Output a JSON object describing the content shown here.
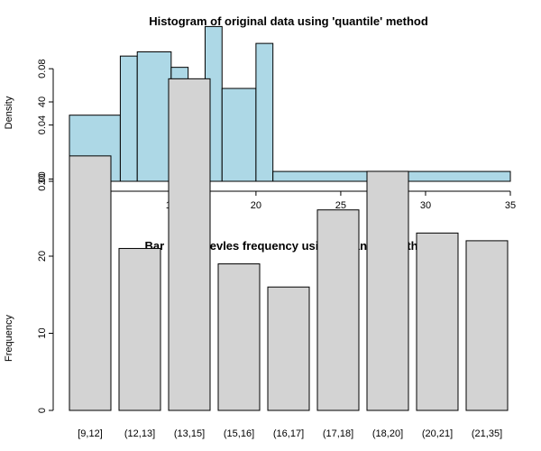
{
  "chart_data": [
    {
      "type": "bar",
      "variant": "histogram",
      "title": "Histogram of original data using 'quantile' method",
      "xlabel": "",
      "ylabel": "Density",
      "xlim": [
        9,
        35
      ],
      "ylim": [
        0,
        0.1
      ],
      "x_ticks": [
        "10",
        "15",
        "20",
        "25",
        "30",
        "35"
      ],
      "y_ticks": [
        "0.00",
        "0.04",
        "0.08"
      ],
      "grid": false,
      "bar_color": "#add8e6",
      "bins": [
        {
          "x0": 9,
          "x1": 12,
          "density": 0.047
        },
        {
          "x0": 12,
          "x1": 13,
          "density": 0.089
        },
        {
          "x0": 13,
          "x1": 15,
          "density": 0.092
        },
        {
          "x0": 15,
          "x1": 16,
          "density": 0.081
        },
        {
          "x0": 16,
          "x1": 17,
          "density": 0.068
        },
        {
          "x0": 17,
          "x1": 18,
          "density": 0.11
        },
        {
          "x0": 18,
          "x1": 20,
          "density": 0.066
        },
        {
          "x0": 20,
          "x1": 21,
          "density": 0.098
        },
        {
          "x0": 21,
          "x1": 35,
          "density": 0.007
        }
      ]
    },
    {
      "type": "bar",
      "title": "Bar plot of levles frequency using 'quantile' method",
      "xlabel": "",
      "ylabel": "Frequency",
      "ylim": [
        0,
        45
      ],
      "y_ticks": [
        "0",
        "10",
        "20",
        "30",
        "40"
      ],
      "grid": false,
      "bar_color": "#d3d3d3",
      "categories": [
        "[9,12]",
        "(12,13]",
        "(13,15]",
        "(15,16]",
        "(16,17]",
        "(17,18]",
        "(18,20]",
        "(20,21]",
        "(21,35]"
      ],
      "values": [
        33,
        21,
        43,
        19,
        16,
        26,
        31,
        23,
        22
      ]
    }
  ]
}
